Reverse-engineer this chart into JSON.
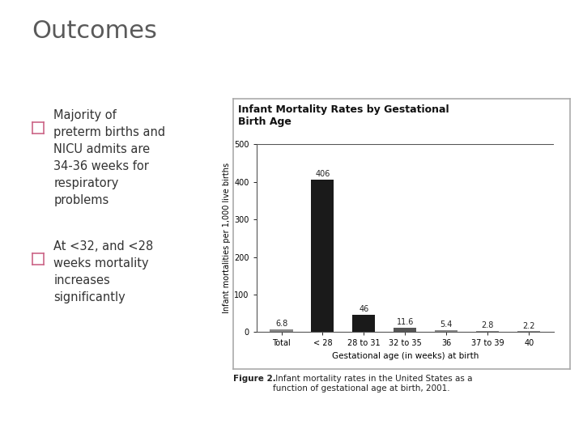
{
  "title": "Outcomes",
  "title_color": "#5a5a5a",
  "title_fontsize": 22,
  "accent_bar_color_pink": "#cc1f5e",
  "accent_bar_color_teal": "#3ab5b0",
  "bullet_points": [
    "Majority of\npreterm births and\nNICU admits are\n34-36 weeks for\nrespiratory\nproblems",
    "At <32, and <28\nweeks mortality\nincreases\nsignificantly"
  ],
  "bullet_color": "#333333",
  "bullet_fontsize": 10.5,
  "chart_title": "Infant Mortality Rates by Gestational\nBirth Age",
  "chart_xlabel": "Gestational age (in weeks) at birth",
  "chart_ylabel": "Infant mortalities per 1,000 live births",
  "chart_categories": [
    "Total",
    "< 28",
    "28 to 31",
    "32 to 35",
    "36",
    "37 to 39",
    "40"
  ],
  "chart_values": [
    6.8,
    406,
    46,
    11.6,
    5.4,
    2.8,
    2.2
  ],
  "chart_bar_color": "#1a1a1a",
  "chart_bar_color_medium": "#555555",
  "chart_ylim": [
    0,
    500
  ],
  "chart_yticks": [
    0,
    100,
    200,
    300,
    400,
    500
  ],
  "chart_value_labels": [
    "6.8",
    "406",
    "46",
    "11.6",
    "5.4",
    "2.8",
    "2.2"
  ],
  "figure_caption_bold": "Figure 2.",
  "figure_caption_rest": " Infant mortality rates in the United States as a\nfunction of gestational age at birth, 2001.",
  "background_color": "#ffffff",
  "slide_bg": "#f0f0f0"
}
